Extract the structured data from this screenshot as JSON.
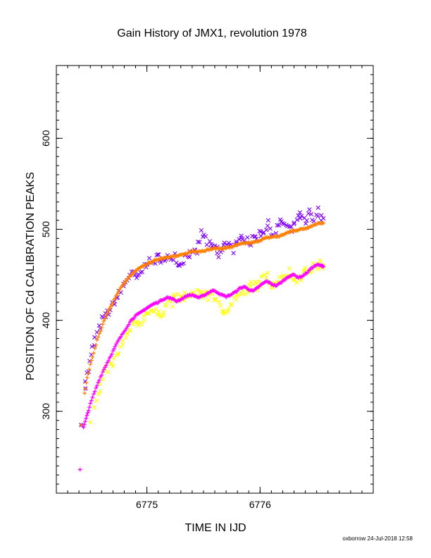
{
  "chart_data": {
    "type": "scatter",
    "title": "Gain History of JMX1, revolution 1978",
    "xlabel": "TIME IN IJD",
    "ylabel": "POSITION OF Cd CALIBRATION PEAKS",
    "xlim": [
      6774.2,
      6777.0
    ],
    "ylim": [
      210,
      680
    ],
    "x_ticks": [
      6775,
      6776
    ],
    "x_tick_labels": [
      "6775",
      "6776"
    ],
    "y_ticks": [
      300,
      400,
      500,
      600
    ],
    "y_tick_labels": [
      "300",
      "400",
      "500",
      "600"
    ],
    "grid": false,
    "legend": "none",
    "series": [
      {
        "color": "#7f00ff",
        "marker": "x",
        "style": "noisy",
        "points": [
          [
            6774.42,
            285
          ],
          [
            6774.45,
            330
          ],
          [
            6774.48,
            345
          ],
          [
            6774.52,
            368
          ],
          [
            6774.56,
            385
          ],
          [
            6774.6,
            400
          ],
          [
            6774.64,
            405
          ],
          [
            6774.68,
            412
          ],
          [
            6774.72,
            422
          ],
          [
            6774.76,
            428
          ],
          [
            6774.8,
            440
          ],
          [
            6774.84,
            448
          ],
          [
            6774.88,
            450
          ],
          [
            6774.92,
            445
          ],
          [
            6774.96,
            455
          ],
          [
            6775.0,
            466
          ],
          [
            6775.04,
            462
          ],
          [
            6775.08,
            468
          ],
          [
            6775.12,
            470
          ],
          [
            6775.16,
            463
          ],
          [
            6775.2,
            470
          ],
          [
            6775.24,
            472
          ],
          [
            6775.28,
            460
          ],
          [
            6775.32,
            467
          ],
          [
            6775.36,
            474
          ],
          [
            6775.4,
            471
          ],
          [
            6775.44,
            476
          ],
          [
            6775.48,
            495
          ],
          [
            6775.52,
            490
          ],
          [
            6775.56,
            478
          ],
          [
            6775.6,
            482
          ],
          [
            6775.64,
            470
          ],
          [
            6775.68,
            480
          ],
          [
            6775.72,
            488
          ],
          [
            6775.76,
            478
          ],
          [
            6775.8,
            482
          ],
          [
            6775.84,
            495
          ],
          [
            6775.88,
            490
          ],
          [
            6775.92,
            485
          ],
          [
            6775.96,
            493
          ],
          [
            6776.0,
            496
          ],
          [
            6776.04,
            500
          ],
          [
            6776.08,
            505
          ],
          [
            6776.12,
            495
          ],
          [
            6776.16,
            505
          ],
          [
            6776.2,
            508
          ],
          [
            6776.24,
            502
          ],
          [
            6776.28,
            498
          ],
          [
            6776.32,
            512
          ],
          [
            6776.36,
            515
          ],
          [
            6776.4,
            505
          ],
          [
            6776.44,
            518
          ],
          [
            6776.48,
            508
          ],
          [
            6776.52,
            520
          ],
          [
            6776.56,
            512
          ]
        ]
      },
      {
        "color": "#ff7f00",
        "marker": "+",
        "style": "smooth",
        "points": [
          [
            6774.42,
            285
          ],
          [
            6774.45,
            320
          ],
          [
            6774.48,
            342
          ],
          [
            6774.52,
            360
          ],
          [
            6774.56,
            378
          ],
          [
            6774.6,
            392
          ],
          [
            6774.64,
            405
          ],
          [
            6774.68,
            415
          ],
          [
            6774.72,
            425
          ],
          [
            6774.76,
            434
          ],
          [
            6774.8,
            441
          ],
          [
            6774.84,
            447
          ],
          [
            6774.88,
            452
          ],
          [
            6774.92,
            456
          ],
          [
            6774.96,
            459
          ],
          [
            6775.0,
            462
          ],
          [
            6775.04,
            464
          ],
          [
            6775.08,
            466
          ],
          [
            6775.12,
            468
          ],
          [
            6775.16,
            469
          ],
          [
            6775.2,
            470
          ],
          [
            6775.24,
            470
          ],
          [
            6775.28,
            471
          ],
          [
            6775.32,
            472
          ],
          [
            6775.36,
            474
          ],
          [
            6775.4,
            476
          ],
          [
            6775.44,
            476
          ],
          [
            6775.48,
            476
          ],
          [
            6775.52,
            477
          ],
          [
            6775.56,
            478
          ],
          [
            6775.6,
            479
          ],
          [
            6775.64,
            479
          ],
          [
            6775.68,
            479
          ],
          [
            6775.72,
            480
          ],
          [
            6775.76,
            481
          ],
          [
            6775.8,
            483
          ],
          [
            6775.84,
            484
          ],
          [
            6775.88,
            485
          ],
          [
            6775.92,
            485
          ],
          [
            6775.96,
            486
          ],
          [
            6776.0,
            488
          ],
          [
            6776.04,
            490
          ],
          [
            6776.08,
            491
          ],
          [
            6776.12,
            492
          ],
          [
            6776.16,
            492
          ],
          [
            6776.2,
            494
          ],
          [
            6776.24,
            496
          ],
          [
            6776.28,
            498
          ],
          [
            6776.32,
            499
          ],
          [
            6776.36,
            500
          ],
          [
            6776.4,
            501
          ],
          [
            6776.44,
            503
          ],
          [
            6776.48,
            505
          ],
          [
            6776.52,
            507
          ],
          [
            6776.56,
            507
          ]
        ]
      },
      {
        "color": "#ffff00",
        "marker": "x",
        "style": "noisy",
        "points": [
          [
            6774.5,
            288
          ],
          [
            6774.54,
            305
          ],
          [
            6774.58,
            322
          ],
          [
            6774.62,
            340
          ],
          [
            6774.66,
            347
          ],
          [
            6774.7,
            352
          ],
          [
            6774.74,
            362
          ],
          [
            6774.78,
            372
          ],
          [
            6774.82,
            382
          ],
          [
            6774.86,
            390
          ],
          [
            6774.9,
            396
          ],
          [
            6774.94,
            398
          ],
          [
            6774.98,
            404
          ],
          [
            6775.02,
            412
          ],
          [
            6775.06,
            410
          ],
          [
            6775.1,
            405
          ],
          [
            6775.14,
            410
          ],
          [
            6775.18,
            418
          ],
          [
            6775.22,
            420
          ],
          [
            6775.26,
            425
          ],
          [
            6775.3,
            422
          ],
          [
            6775.34,
            428
          ],
          [
            6775.38,
            425
          ],
          [
            6775.42,
            430
          ],
          [
            6775.46,
            432
          ],
          [
            6775.5,
            428
          ],
          [
            6775.54,
            426
          ],
          [
            6775.58,
            430
          ],
          [
            6775.62,
            420
          ],
          [
            6775.66,
            408
          ],
          [
            6775.7,
            412
          ],
          [
            6775.74,
            418
          ],
          [
            6775.78,
            425
          ],
          [
            6775.82,
            428
          ],
          [
            6775.86,
            430
          ],
          [
            6775.9,
            435
          ],
          [
            6775.94,
            440
          ],
          [
            6775.98,
            438
          ],
          [
            6776.02,
            444
          ],
          [
            6776.06,
            448
          ],
          [
            6776.1,
            440
          ],
          [
            6776.14,
            442
          ],
          [
            6776.18,
            446
          ],
          [
            6776.22,
            450
          ],
          [
            6776.26,
            453
          ],
          [
            6776.3,
            445
          ],
          [
            6776.34,
            447
          ],
          [
            6776.38,
            452
          ],
          [
            6776.42,
            454
          ],
          [
            6776.46,
            457
          ],
          [
            6776.5,
            460
          ],
          [
            6776.54,
            462
          ],
          [
            6776.56,
            460
          ]
        ]
      },
      {
        "color": "#ff00ff",
        "marker": "+",
        "style": "smooth",
        "points": [
          [
            6774.41,
            236
          ],
          [
            6774.44,
            282
          ],
          [
            6774.47,
            295
          ],
          [
            6774.5,
            308
          ],
          [
            6774.54,
            322
          ],
          [
            6774.58,
            335
          ],
          [
            6774.62,
            346
          ],
          [
            6774.66,
            356
          ],
          [
            6774.7,
            366
          ],
          [
            6774.74,
            376
          ],
          [
            6774.78,
            384
          ],
          [
            6774.82,
            392
          ],
          [
            6774.86,
            400
          ],
          [
            6774.9,
            405
          ],
          [
            6774.94,
            408
          ],
          [
            6774.98,
            412
          ],
          [
            6775.02,
            415
          ],
          [
            6775.06,
            418
          ],
          [
            6775.1,
            420
          ],
          [
            6775.14,
            423
          ],
          [
            6775.18,
            425
          ],
          [
            6775.22,
            424
          ],
          [
            6775.26,
            421
          ],
          [
            6775.3,
            423
          ],
          [
            6775.34,
            426
          ],
          [
            6775.38,
            428
          ],
          [
            6775.42,
            427
          ],
          [
            6775.46,
            425
          ],
          [
            6775.5,
            427
          ],
          [
            6775.54,
            430
          ],
          [
            6775.58,
            433
          ],
          [
            6775.62,
            431
          ],
          [
            6775.66,
            428
          ],
          [
            6775.7,
            426
          ],
          [
            6775.74,
            428
          ],
          [
            6775.78,
            431
          ],
          [
            6775.82,
            435
          ],
          [
            6775.86,
            437
          ],
          [
            6775.9,
            434
          ],
          [
            6775.94,
            432
          ],
          [
            6775.98,
            436
          ],
          [
            6776.02,
            440
          ],
          [
            6776.06,
            443
          ],
          [
            6776.1,
            440
          ],
          [
            6776.14,
            438
          ],
          [
            6776.18,
            441
          ],
          [
            6776.22,
            445
          ],
          [
            6776.26,
            449
          ],
          [
            6776.3,
            450
          ],
          [
            6776.34,
            447
          ],
          [
            6776.38,
            449
          ],
          [
            6776.42,
            453
          ],
          [
            6776.46,
            458
          ],
          [
            6776.5,
            461
          ],
          [
            6776.54,
            460
          ],
          [
            6776.56,
            459
          ]
        ]
      }
    ]
  },
  "footer": {
    "credit": "oxborrow 24-Jul-2018 12:58"
  }
}
